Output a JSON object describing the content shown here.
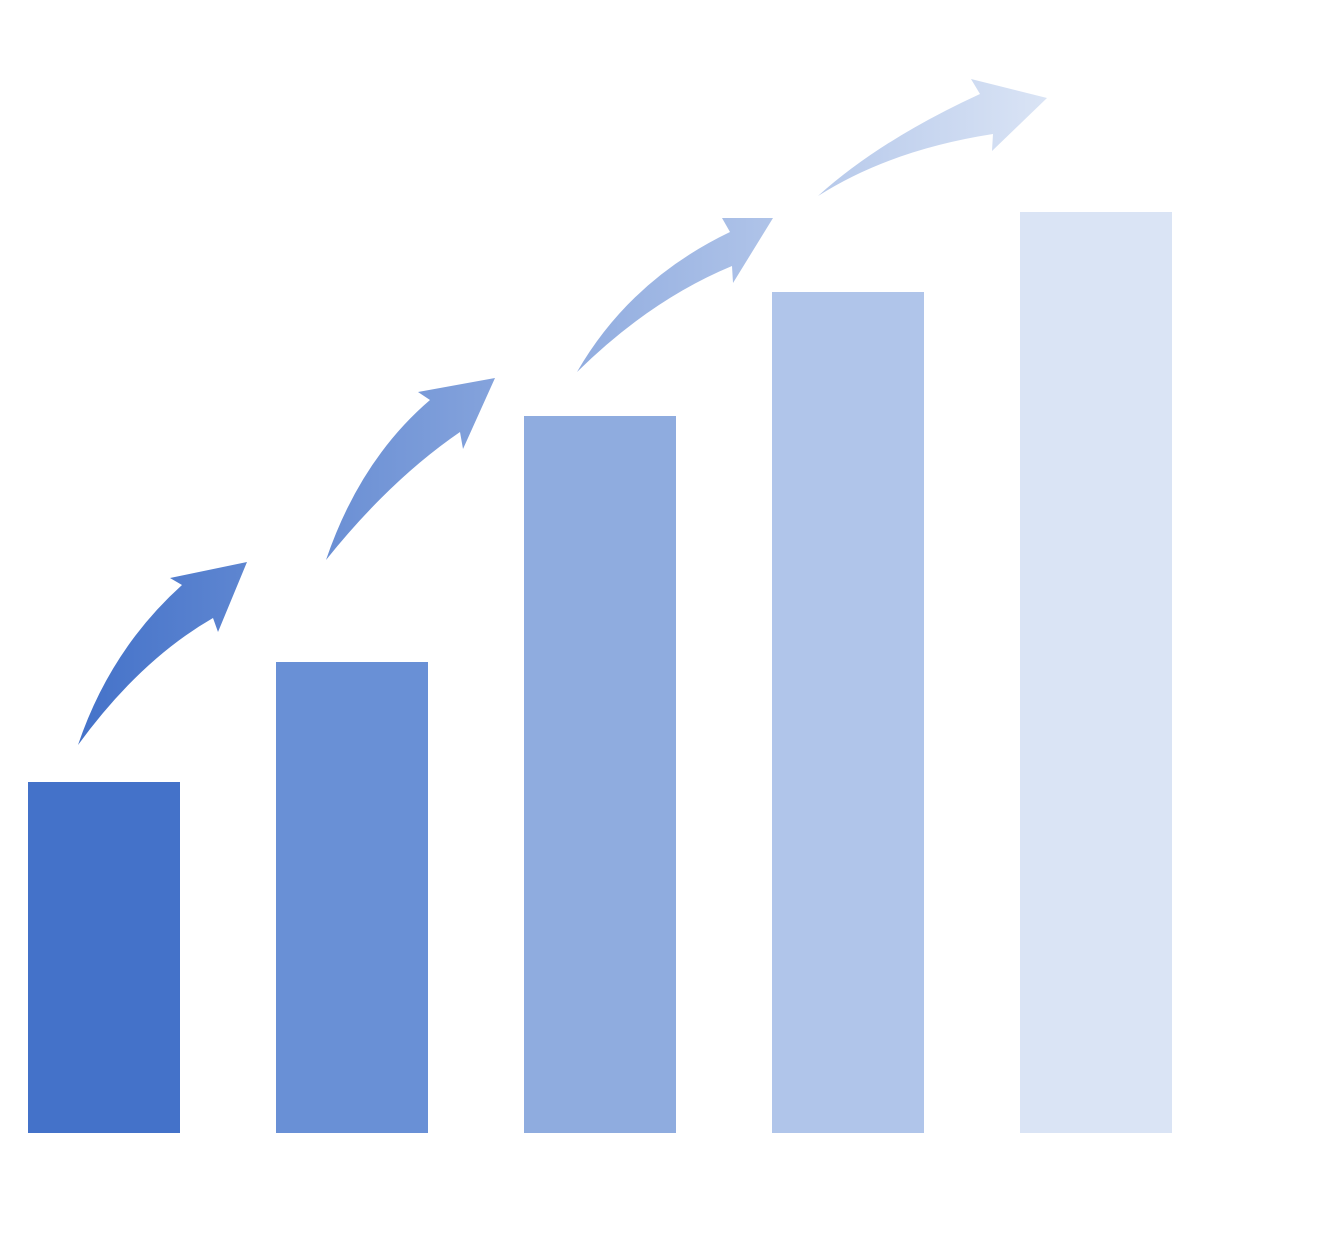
{
  "chart_data": {
    "type": "bar",
    "values": [
      351,
      471,
      717,
      841,
      921
    ],
    "colors": [
      "#4472c9",
      "#6990d6",
      "#8facdf",
      "#b0c5ea",
      "#dae4f5"
    ],
    "ylim": [
      0,
      1000
    ]
  }
}
